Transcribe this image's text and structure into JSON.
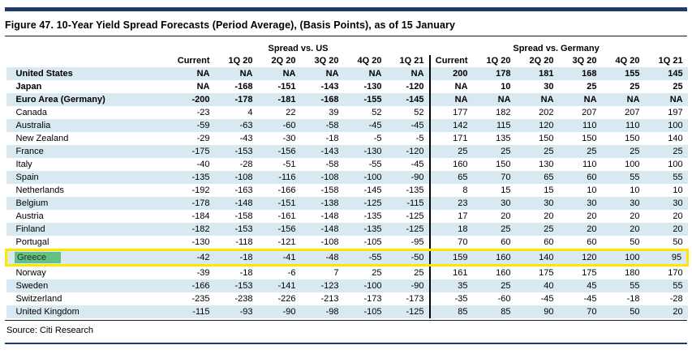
{
  "figure": {
    "title": "Figure 47. 10-Year Yield Spread Forecasts (Period Average), (Basis Points), as of 15 January",
    "source": "Source: Citi Research"
  },
  "colors": {
    "rule_navy": "#1f3b6d",
    "row_stripe_blue": "#d9e9f1",
    "highlight_border_yellow": "#ffe600",
    "label_highlight_green": "#62c286"
  },
  "table": {
    "group_headers": [
      "Spread vs. US",
      "Spread vs. Germany"
    ],
    "column_headers": [
      "Current",
      "1Q 20",
      "2Q 20",
      "3Q 20",
      "4Q 20",
      "1Q 21"
    ],
    "rows": [
      {
        "country": "United States",
        "bold": true,
        "highlight": false,
        "us": [
          "NA",
          "NA",
          "NA",
          "NA",
          "NA",
          "NA"
        ],
        "germany": [
          "200",
          "178",
          "181",
          "168",
          "155",
          "145"
        ]
      },
      {
        "country": "Japan",
        "bold": true,
        "highlight": false,
        "us": [
          "NA",
          "-168",
          "-151",
          "-143",
          "-130",
          "-120"
        ],
        "germany": [
          "NA",
          "10",
          "30",
          "25",
          "25",
          "25"
        ]
      },
      {
        "country": "Euro Area (Germany)",
        "bold": true,
        "highlight": false,
        "us": [
          "-200",
          "-178",
          "-181",
          "-168",
          "-155",
          "-145"
        ],
        "germany": [
          "NA",
          "NA",
          "NA",
          "NA",
          "NA",
          "NA"
        ]
      },
      {
        "country": "Canada",
        "bold": false,
        "highlight": false,
        "us": [
          "-23",
          "4",
          "22",
          "39",
          "52",
          "52"
        ],
        "germany": [
          "177",
          "182",
          "202",
          "207",
          "207",
          "197"
        ]
      },
      {
        "country": "Australia",
        "bold": false,
        "highlight": false,
        "us": [
          "-59",
          "-63",
          "-60",
          "-58",
          "-45",
          "-45"
        ],
        "germany": [
          "142",
          "115",
          "120",
          "110",
          "110",
          "100"
        ]
      },
      {
        "country": "New Zealand",
        "bold": false,
        "highlight": false,
        "us": [
          "-29",
          "-43",
          "-30",
          "-18",
          "-5",
          "-5"
        ],
        "germany": [
          "171",
          "135",
          "150",
          "150",
          "150",
          "140"
        ]
      },
      {
        "country": "France",
        "bold": false,
        "highlight": false,
        "us": [
          "-175",
          "-153",
          "-156",
          "-143",
          "-130",
          "-120"
        ],
        "germany": [
          "25",
          "25",
          "25",
          "25",
          "25",
          "25"
        ]
      },
      {
        "country": "Italy",
        "bold": false,
        "highlight": false,
        "us": [
          "-40",
          "-28",
          "-51",
          "-58",
          "-55",
          "-45"
        ],
        "germany": [
          "160",
          "150",
          "130",
          "110",
          "100",
          "100"
        ]
      },
      {
        "country": "Spain",
        "bold": false,
        "highlight": false,
        "us": [
          "-135",
          "-108",
          "-116",
          "-108",
          "-100",
          "-90"
        ],
        "germany": [
          "65",
          "70",
          "65",
          "60",
          "55",
          "55"
        ]
      },
      {
        "country": "Netherlands",
        "bold": false,
        "highlight": false,
        "us": [
          "-192",
          "-163",
          "-166",
          "-158",
          "-145",
          "-135"
        ],
        "germany": [
          "8",
          "15",
          "15",
          "10",
          "10",
          "10"
        ]
      },
      {
        "country": "Belgium",
        "bold": false,
        "highlight": false,
        "us": [
          "-178",
          "-148",
          "-151",
          "-138",
          "-125",
          "-115"
        ],
        "germany": [
          "23",
          "30",
          "30",
          "30",
          "30",
          "30"
        ]
      },
      {
        "country": "Austria",
        "bold": false,
        "highlight": false,
        "us": [
          "-184",
          "-158",
          "-161",
          "-148",
          "-135",
          "-125"
        ],
        "germany": [
          "17",
          "20",
          "20",
          "20",
          "20",
          "20"
        ]
      },
      {
        "country": "Finland",
        "bold": false,
        "highlight": false,
        "us": [
          "-182",
          "-153",
          "-156",
          "-148",
          "-135",
          "-125"
        ],
        "germany": [
          "18",
          "25",
          "25",
          "20",
          "20",
          "20"
        ]
      },
      {
        "country": "Portugal",
        "bold": false,
        "highlight": false,
        "us": [
          "-130",
          "-118",
          "-121",
          "-108",
          "-105",
          "-95"
        ],
        "germany": [
          "70",
          "60",
          "60",
          "60",
          "50",
          "50"
        ]
      },
      {
        "country": "Greece",
        "bold": false,
        "highlight": true,
        "us": [
          "-42",
          "-18",
          "-41",
          "-48",
          "-55",
          "-50"
        ],
        "germany": [
          "159",
          "160",
          "140",
          "120",
          "100",
          "95"
        ]
      },
      {
        "country": "Norway",
        "bold": false,
        "highlight": false,
        "us": [
          "-39",
          "-18",
          "-6",
          "7",
          "25",
          "25"
        ],
        "germany": [
          "161",
          "160",
          "175",
          "175",
          "180",
          "170"
        ]
      },
      {
        "country": "Sweden",
        "bold": false,
        "highlight": false,
        "us": [
          "-166",
          "-153",
          "-141",
          "-123",
          "-100",
          "-90"
        ],
        "germany": [
          "35",
          "25",
          "40",
          "45",
          "55",
          "55"
        ]
      },
      {
        "country": "Switzerland",
        "bold": false,
        "highlight": false,
        "us": [
          "-235",
          "-238",
          "-226",
          "-213",
          "-173",
          "-173"
        ],
        "germany": [
          "-35",
          "-60",
          "-45",
          "-45",
          "-18",
          "-28"
        ]
      },
      {
        "country": "United Kingdom",
        "bold": false,
        "highlight": false,
        "us": [
          "-115",
          "-93",
          "-90",
          "-98",
          "-105",
          "-125"
        ],
        "germany": [
          "85",
          "85",
          "90",
          "70",
          "50",
          "20"
        ]
      }
    ]
  }
}
